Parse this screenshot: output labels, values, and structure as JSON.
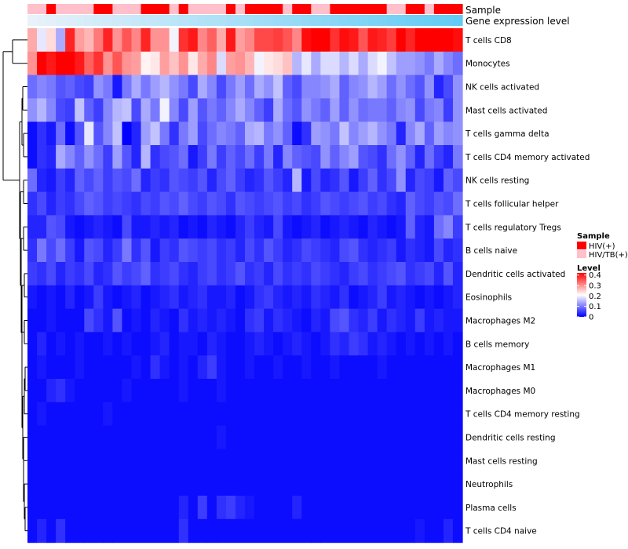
{
  "chart_data": {
    "type": "heatmap",
    "annotations": {
      "sample_label": "Sample",
      "gene_label": "Gene expression level",
      "sample_groups": [
        "HIV/TB(+)",
        "HIV/TB(+)",
        "HIV(+)",
        "HIV/TB(+)",
        "HIV/TB(+)",
        "HIV/TB(+)",
        "HIV/TB(+)",
        "HIV(+)",
        "HIV(+)",
        "HIV/TB(+)",
        "HIV/TB(+)",
        "HIV/TB(+)",
        "HIV(+)",
        "HIV(+)",
        "HIV(+)",
        "HIV/TB(+)",
        "HIV(+)",
        "HIV/TB(+)",
        "HIV/TB(+)",
        "HIV/TB(+)",
        "HIV/TB(+)",
        "HIV(+)",
        "HIV/TB(+)",
        "HIV(+)",
        "HIV(+)",
        "HIV(+)",
        "HIV(+)",
        "HIV/TB(+)",
        "HIV(+)",
        "HIV(+)",
        "HIV/TB(+)",
        "HIV/TB(+)",
        "HIV(+)",
        "HIV(+)",
        "HIV(+)",
        "HIV(+)",
        "HIV(+)",
        "HIV(+)",
        "HIV/TB(+)",
        "HIV/TB(+)",
        "HIV(+)",
        "HIV(+)",
        "HIV/TB(+)",
        "HIV(+)",
        "HIV(+)",
        "HIV(+)"
      ],
      "gene_level_start": "#e8f2fa",
      "gene_level_end": "#62cbf4"
    },
    "rows": [
      "T cells CD8",
      "Monocytes",
      "NK cells activated",
      "Mast cells activated",
      "T cells gamma delta",
      "T cells CD4 memory activated",
      "NK cells resting",
      "T cells follicular helper",
      "T cells regulatory  Tregs",
      "B cells naive",
      "Dendritic cells activated",
      "Eosinophils",
      "Macrophages M2",
      "B cells memory",
      "Macrophages M1",
      "Macrophages M0",
      "T cells CD4 memory resting",
      "Dendritic cells resting",
      "Mast cells resting",
      "Neutrophils",
      "Plasma cells",
      "T cells CD4 naive"
    ],
    "n_columns": 46,
    "values": [
      [
        0.28,
        0.19,
        0.24,
        0.14,
        0.39,
        0.29,
        0.27,
        0.32,
        0.39,
        0.3,
        0.35,
        0.31,
        0.39,
        0.3,
        0.3,
        0.2,
        0.38,
        0.4,
        0.31,
        0.34,
        0.28,
        0.4,
        0.29,
        0.31,
        0.36,
        0.36,
        0.37,
        0.35,
        0.31,
        0.41,
        0.42,
        0.42,
        0.38,
        0.41,
        0.4,
        0.35,
        0.4,
        0.39,
        0.37,
        0.42,
        0.39,
        0.42,
        0.42,
        0.42,
        0.42,
        0.41
      ],
      [
        0.3,
        0.42,
        0.4,
        0.42,
        0.42,
        0.4,
        0.34,
        0.38,
        0.3,
        0.35,
        0.3,
        0.29,
        0.22,
        0.23,
        0.29,
        0.26,
        0.3,
        0.23,
        0.28,
        0.31,
        0.18,
        0.29,
        0.3,
        0.27,
        0.2,
        0.23,
        0.24,
        0.26,
        0.15,
        0.19,
        0.14,
        0.18,
        0.18,
        0.15,
        0.18,
        0.14,
        0.18,
        0.2,
        0.16,
        0.13,
        0.13,
        0.12,
        0.1,
        0.14,
        0.11,
        0.09
      ],
      [
        0.09,
        0.11,
        0.1,
        0.07,
        0.08,
        0.06,
        0.05,
        0.12,
        0.1,
        0.02,
        0.1,
        0.14,
        0.1,
        0.13,
        0.15,
        0.12,
        0.1,
        0.06,
        0.14,
        0.11,
        0.06,
        0.1,
        0.13,
        0.09,
        0.14,
        0.12,
        0.16,
        0.08,
        0.06,
        0.11,
        0.11,
        0.12,
        0.14,
        0.08,
        0.11,
        0.12,
        0.15,
        0.13,
        0.09,
        0.12,
        0.09,
        0.07,
        0.12,
        0.03,
        0.06,
        0.12
      ],
      [
        0.12,
        0.15,
        0.11,
        0.06,
        0.05,
        0.16,
        0.08,
        0.05,
        0.11,
        0.15,
        0.16,
        0.06,
        0.14,
        0.1,
        0.2,
        0.11,
        0.06,
        0.13,
        0.07,
        0.1,
        0.08,
        0.11,
        0.14,
        0.11,
        0.08,
        0.05,
        0.14,
        0.09,
        0.07,
        0.12,
        0.1,
        0.08,
        0.13,
        0.08,
        0.12,
        0.09,
        0.1,
        0.1,
        0.08,
        0.11,
        0.12,
        0.06,
        0.1,
        0.11,
        0.05,
        0.12
      ],
      [
        0.01,
        0.04,
        0.02,
        0.09,
        0.01,
        0.07,
        0.19,
        0.07,
        0.11,
        0.16,
        0.0,
        0.03,
        0.13,
        0.16,
        0.1,
        0.04,
        0.1,
        0.13,
        0.06,
        0.09,
        0.11,
        0.1,
        0.08,
        0.14,
        0.15,
        0.1,
        0.12,
        0.08,
        0.01,
        0.04,
        0.13,
        0.12,
        0.1,
        0.16,
        0.11,
        0.13,
        0.15,
        0.12,
        0.1,
        0.03,
        0.11,
        0.14,
        0.08,
        0.13,
        0.11,
        0.12
      ],
      [
        0.01,
        0.04,
        0.03,
        0.14,
        0.11,
        0.08,
        0.12,
        0.09,
        0.05,
        0.13,
        0.07,
        0.03,
        0.15,
        0.04,
        0.06,
        0.07,
        0.09,
        0.02,
        0.05,
        0.1,
        0.05,
        0.08,
        0.06,
        0.09,
        0.05,
        0.1,
        0.03,
        0.11,
        0.08,
        0.07,
        0.06,
        0.12,
        0.08,
        0.11,
        0.13,
        0.07,
        0.06,
        0.04,
        0.09,
        0.12,
        0.08,
        0.03,
        0.09,
        0.05,
        0.03,
        0.1
      ],
      [
        0.09,
        0.03,
        0.02,
        0.05,
        0.03,
        0.08,
        0.06,
        0.08,
        0.05,
        0.07,
        0.06,
        0.09,
        0.03,
        0.05,
        0.04,
        0.07,
        0.06,
        0.05,
        0.07,
        0.03,
        0.06,
        0.08,
        0.05,
        0.03,
        0.04,
        0.07,
        0.05,
        0.03,
        0.15,
        0.02,
        0.06,
        0.03,
        0.04,
        0.07,
        0.02,
        0.05,
        0.08,
        0.04,
        0.06,
        0.12,
        0.03,
        0.06,
        0.05,
        0.02,
        0.08,
        0.06
      ],
      [
        0.04,
        0.06,
        0.03,
        0.05,
        0.04,
        0.06,
        0.08,
        0.07,
        0.05,
        0.06,
        0.05,
        0.04,
        0.06,
        0.05,
        0.07,
        0.06,
        0.08,
        0.06,
        0.05,
        0.07,
        0.06,
        0.04,
        0.07,
        0.06,
        0.05,
        0.06,
        0.07,
        0.05,
        0.06,
        0.04,
        0.05,
        0.07,
        0.06,
        0.05,
        0.06,
        0.07,
        0.05,
        0.06,
        0.04,
        0.03,
        0.08,
        0.06,
        0.05,
        0.07,
        0.06,
        0.09
      ],
      [
        0.03,
        0.03,
        0.07,
        0.06,
        0.02,
        0.01,
        0.02,
        0.03,
        0.02,
        0.01,
        0.06,
        0.02,
        0.02,
        0.03,
        0.02,
        0.03,
        0.01,
        0.02,
        0.01,
        0.03,
        0.02,
        0.01,
        0.03,
        0.05,
        0.03,
        0.02,
        0.06,
        0.02,
        0.01,
        0.02,
        0.03,
        0.01,
        0.02,
        0.03,
        0.02,
        0.01,
        0.03,
        0.02,
        0.01,
        0.02,
        0.08,
        0.03,
        0.02,
        0.09,
        0.11,
        0.05
      ],
      [
        0.04,
        0.1,
        0.06,
        0.09,
        0.05,
        0.02,
        0.07,
        0.06,
        0.03,
        0.05,
        0.1,
        0.04,
        0.07,
        0.02,
        0.05,
        0.04,
        0.07,
        0.06,
        0.05,
        0.06,
        0.04,
        0.05,
        0.03,
        0.06,
        0.04,
        0.07,
        0.05,
        0.03,
        0.04,
        0.06,
        0.05,
        0.04,
        0.03,
        0.06,
        0.07,
        0.04,
        0.03,
        0.04,
        0.05,
        0.02,
        0.04,
        0.03,
        0.02,
        0.06,
        0.03,
        0.04
      ],
      [
        0.05,
        0.04,
        0.06,
        0.03,
        0.05,
        0.04,
        0.06,
        0.03,
        0.04,
        0.07,
        0.05,
        0.06,
        0.08,
        0.04,
        0.05,
        0.06,
        0.04,
        0.03,
        0.05,
        0.06,
        0.04,
        0.05,
        0.07,
        0.04,
        0.05,
        0.03,
        0.06,
        0.04,
        0.05,
        0.04,
        0.06,
        0.05,
        0.04,
        0.03,
        0.05,
        0.06,
        0.04,
        0.05,
        0.06,
        0.07,
        0.04,
        0.05,
        0.06,
        0.03,
        0.07,
        0.03
      ],
      [
        0.02,
        0.01,
        0.02,
        0.01,
        0.03,
        0.01,
        0.02,
        0.05,
        0.02,
        0.01,
        0.02,
        0.03,
        0.01,
        0.02,
        0.03,
        0.04,
        0.02,
        0.03,
        0.04,
        0.02,
        0.02,
        0.03,
        0.01,
        0.02,
        0.04,
        0.05,
        0.03,
        0.02,
        0.03,
        0.02,
        0.04,
        0.03,
        0.02,
        0.04,
        0.01,
        0.02,
        0.03,
        0.05,
        0.02,
        0.03,
        0.02,
        0.01,
        0.02,
        0.01,
        0.02,
        0.03
      ],
      [
        0.01,
        0.01,
        0.02,
        0.01,
        0.01,
        0.01,
        0.06,
        0.04,
        0.02,
        0.07,
        0.01,
        0.02,
        0.01,
        0.03,
        0.02,
        0.01,
        0.04,
        0.02,
        0.03,
        0.02,
        0.03,
        0.02,
        0.01,
        0.04,
        0.05,
        0.02,
        0.04,
        0.03,
        0.02,
        0.01,
        0.03,
        0.02,
        0.06,
        0.07,
        0.04,
        0.03,
        0.05,
        0.02,
        0.04,
        0.03,
        0.02,
        0.05,
        0.02,
        0.03,
        0.02,
        0.02
      ],
      [
        0.01,
        0.03,
        0.01,
        0.02,
        0.01,
        0.02,
        0.01,
        0.01,
        0.02,
        0.01,
        0.02,
        0.01,
        0.01,
        0.02,
        0.03,
        0.01,
        0.02,
        0.02,
        0.01,
        0.03,
        0.02,
        0.01,
        0.01,
        0.02,
        0.03,
        0.02,
        0.01,
        0.02,
        0.03,
        0.02,
        0.01,
        0.02,
        0.04,
        0.03,
        0.05,
        0.04,
        0.02,
        0.03,
        0.02,
        0.01,
        0.02,
        0.01,
        0.02,
        0.01,
        0.02,
        0.01
      ],
      [
        0.01,
        0.02,
        0.01,
        0.01,
        0.01,
        0.02,
        0.01,
        0.01,
        0.01,
        0.01,
        0.01,
        0.02,
        0.01,
        0.04,
        0.02,
        0.01,
        0.02,
        0.01,
        0.03,
        0.05,
        0.02,
        0.01,
        0.01,
        0.02,
        0.01,
        0.01,
        0.02,
        0.01,
        0.01,
        0.02,
        0.01,
        0.01,
        0.02,
        0.01,
        0.01,
        0.01,
        0.01,
        0.02,
        0.01,
        0.01,
        0.01,
        0.01,
        0.01,
        0.01,
        0.01,
        0.01
      ],
      [
        0.01,
        0.01,
        0.03,
        0.04,
        0.02,
        0.01,
        0.01,
        0.01,
        0.01,
        0.01,
        0.02,
        0.01,
        0.01,
        0.01,
        0.01,
        0.01,
        0.02,
        0.01,
        0.01,
        0.01,
        0.02,
        0.01,
        0.01,
        0.01,
        0.01,
        0.01,
        0.01,
        0.01,
        0.01,
        0.01,
        0.01,
        0.01,
        0.01,
        0.01,
        0.01,
        0.01,
        0.01,
        0.01,
        0.01,
        0.01,
        0.01,
        0.01,
        0.01,
        0.01,
        0.01,
        0.01
      ],
      [
        0.01,
        0.02,
        0.01,
        0.01,
        0.01,
        0.01,
        0.01,
        0.01,
        0.02,
        0.01,
        0.01,
        0.01,
        0.01,
        0.01,
        0.01,
        0.01,
        0.01,
        0.01,
        0.01,
        0.01,
        0.01,
        0.01,
        0.01,
        0.01,
        0.01,
        0.01,
        0.01,
        0.01,
        0.01,
        0.01,
        0.01,
        0.01,
        0.01,
        0.01,
        0.01,
        0.01,
        0.01,
        0.01,
        0.01,
        0.01,
        0.01,
        0.01,
        0.01,
        0.01,
        0.01,
        0.01
      ],
      [
        0.01,
        0.01,
        0.01,
        0.01,
        0.01,
        0.01,
        0.01,
        0.01,
        0.01,
        0.01,
        0.01,
        0.01,
        0.01,
        0.01,
        0.01,
        0.01,
        0.01,
        0.01,
        0.01,
        0.01,
        0.02,
        0.01,
        0.01,
        0.01,
        0.01,
        0.01,
        0.01,
        0.01,
        0.01,
        0.01,
        0.01,
        0.01,
        0.01,
        0.01,
        0.01,
        0.01,
        0.01,
        0.01,
        0.01,
        0.01,
        0.01,
        0.01,
        0.01,
        0.01,
        0.01,
        0.01
      ],
      [
        0.01,
        0.01,
        0.01,
        0.01,
        0.01,
        0.01,
        0.01,
        0.01,
        0.01,
        0.01,
        0.01,
        0.01,
        0.01,
        0.01,
        0.01,
        0.01,
        0.01,
        0.01,
        0.01,
        0.01,
        0.01,
        0.01,
        0.01,
        0.01,
        0.01,
        0.01,
        0.01,
        0.01,
        0.01,
        0.01,
        0.01,
        0.01,
        0.01,
        0.01,
        0.01,
        0.01,
        0.01,
        0.01,
        0.01,
        0.01,
        0.01,
        0.01,
        0.01,
        0.01,
        0.01,
        0.01
      ],
      [
        0.01,
        0.01,
        0.01,
        0.01,
        0.01,
        0.01,
        0.01,
        0.01,
        0.01,
        0.01,
        0.01,
        0.01,
        0.01,
        0.01,
        0.01,
        0.01,
        0.01,
        0.01,
        0.01,
        0.01,
        0.01,
        0.01,
        0.01,
        0.01,
        0.01,
        0.01,
        0.01,
        0.01,
        0.01,
        0.01,
        0.01,
        0.01,
        0.01,
        0.01,
        0.01,
        0.01,
        0.01,
        0.01,
        0.01,
        0.01,
        0.01,
        0.01,
        0.01,
        0.01,
        0.01,
        0.01
      ],
      [
        0.01,
        0.01,
        0.01,
        0.01,
        0.01,
        0.01,
        0.01,
        0.01,
        0.01,
        0.01,
        0.01,
        0.01,
        0.01,
        0.01,
        0.01,
        0.01,
        0.03,
        0.01,
        0.05,
        0.01,
        0.04,
        0.05,
        0.03,
        0.02,
        0.01,
        0.01,
        0.01,
        0.01,
        0.03,
        0.01,
        0.01,
        0.01,
        0.01,
        0.01,
        0.01,
        0.01,
        0.01,
        0.01,
        0.01,
        0.01,
        0.01,
        0.01,
        0.01,
        0.01,
        0.01,
        0.01
      ],
      [
        0.01,
        0.03,
        0.01,
        0.04,
        0.01,
        0.01,
        0.01,
        0.01,
        0.01,
        0.01,
        0.01,
        0.01,
        0.01,
        0.01,
        0.01,
        0.01,
        0.04,
        0.01,
        0.01,
        0.01,
        0.01,
        0.01,
        0.01,
        0.01,
        0.01,
        0.01,
        0.01,
        0.01,
        0.01,
        0.01,
        0.01,
        0.01,
        0.01,
        0.01,
        0.01,
        0.01,
        0.01,
        0.01,
        0.01,
        0.01,
        0.01,
        0.02,
        0.01,
        0.01,
        0.03,
        0.01
      ]
    ],
    "legend": {
      "sample_title": "Sample",
      "sample_entries": [
        {
          "label": "HIV(+)",
          "color": "#ff0000"
        },
        {
          "label": "HIV/TB(+)",
          "color": "#ffc0cb"
        }
      ],
      "level_title": "Level",
      "level_ticks": [
        "0.4",
        "0.3",
        "0.2",
        "0.1",
        "0"
      ],
      "level_range": [
        0,
        0.42
      ]
    },
    "colors": {
      "low": "#0000ff",
      "mid": "#ffffff",
      "high": "#ff0000",
      "mid_value": 0.21
    }
  }
}
